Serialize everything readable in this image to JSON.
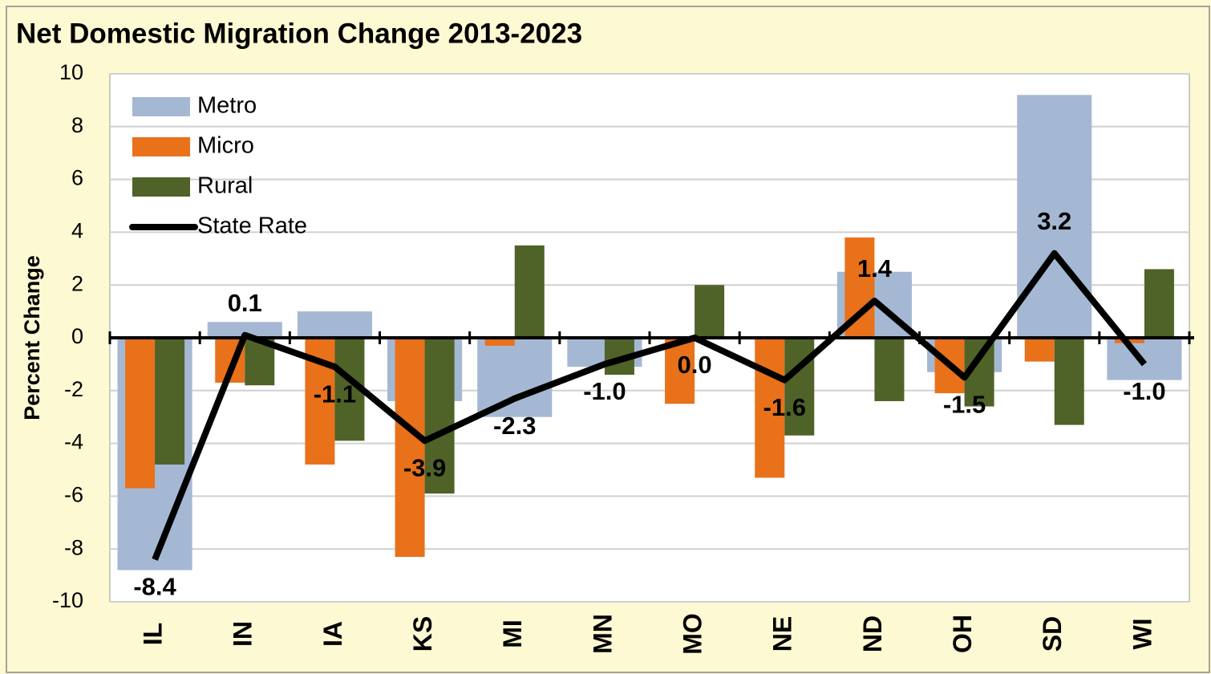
{
  "chart_data": {
    "type": "bar_line",
    "title": "Net Domestic Migration Change 2013-2023",
    "y_label": "Percent Change",
    "categories": [
      "IL",
      "IN",
      "IA",
      "KS",
      "MI",
      "MN",
      "MO",
      "NE",
      "ND",
      "OH",
      "SD",
      "WI"
    ],
    "series": [
      {
        "name": "Metro",
        "kind": "bar",
        "color": "#a5b8d3",
        "values": [
          -8.8,
          0.6,
          1.0,
          -2.4,
          -3.0,
          -1.1,
          0,
          0,
          2.5,
          -1.3,
          9.2,
          -1.6
        ]
      },
      {
        "name": "Micro",
        "kind": "bar",
        "color": "#e8711a",
        "values": [
          -5.7,
          -1.7,
          -4.8,
          -8.3,
          -0.3,
          0,
          -2.5,
          -5.3,
          3.8,
          -2.1,
          -0.9,
          -0.2
        ]
      },
      {
        "name": "Rural",
        "kind": "bar",
        "color": "#4f6228",
        "values": [
          -4.8,
          -1.8,
          -3.9,
          -5.9,
          3.5,
          -1.4,
          2.0,
          -3.7,
          -2.4,
          -2.6,
          -3.3,
          2.6
        ]
      },
      {
        "name": "State Rate",
        "kind": "line",
        "color": "#000000",
        "values": [
          -8.4,
          0.1,
          -1.1,
          -3.9,
          -2.3,
          -1.0,
          0.0,
          -1.6,
          1.4,
          -1.5,
          3.2,
          -1.0
        ],
        "value_labels": [
          "-8.4",
          "0.1",
          "-1.1",
          "-3.9",
          "-2.3",
          "-1.0",
          "0.0",
          "-1.6",
          "1.4",
          "-1.5",
          "3.2",
          "-1.0"
        ]
      }
    ],
    "ylim": [
      -10,
      10
    ],
    "yticks": [
      -10,
      -8,
      -6,
      -4,
      -2,
      0,
      2,
      4,
      6,
      8,
      10
    ],
    "grid": true,
    "legend": "upper left"
  }
}
